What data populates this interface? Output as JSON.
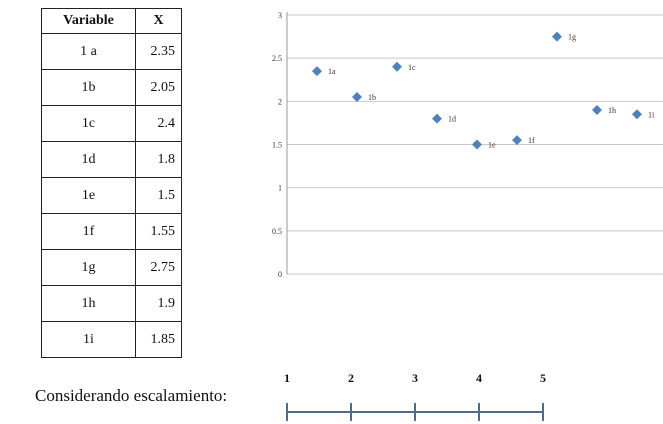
{
  "table": {
    "headers": [
      "Variable",
      "X"
    ],
    "rows": [
      {
        "variable": "1 a",
        "x": "2.35"
      },
      {
        "variable": "1b",
        "x": "2.05"
      },
      {
        "variable": "1c",
        "x": "2.4"
      },
      {
        "variable": "1d",
        "x": "1.8"
      },
      {
        "variable": "1e",
        "x": "1.5"
      },
      {
        "variable": "1f",
        "x": "1.55"
      },
      {
        "variable": "1g",
        "x": "2.75"
      },
      {
        "variable": "1h",
        "x": "1.9"
      },
      {
        "variable": "1i",
        "x": "1.85"
      }
    ]
  },
  "chart_data": {
    "type": "scatter",
    "x": [
      1,
      2,
      3,
      4,
      5,
      6,
      7,
      8,
      9
    ],
    "y": [
      2.35,
      2.05,
      2.4,
      1.8,
      1.5,
      1.55,
      2.75,
      1.9,
      1.85
    ],
    "point_labels": [
      "1a",
      "1b",
      "1c",
      "1d",
      "1e",
      "1f",
      "1g",
      "1h",
      "1i"
    ],
    "ylim": [
      0,
      3
    ],
    "yticks": [
      "0",
      "0.5",
      "1",
      "1.5",
      "2",
      "2.5",
      "3"
    ],
    "yticks_values": [
      0,
      0.5,
      1,
      1.5,
      2,
      2.5,
      3
    ],
    "grid": true,
    "legend": "none",
    "marker_color": "#4f81bd",
    "title": "",
    "xlabel": "",
    "ylabel": ""
  },
  "scale": {
    "label": "Considerando escalamiento:",
    "ticks": [
      "1",
      "2",
      "3",
      "4",
      "5"
    ],
    "line_color": "#4f6a8f"
  }
}
